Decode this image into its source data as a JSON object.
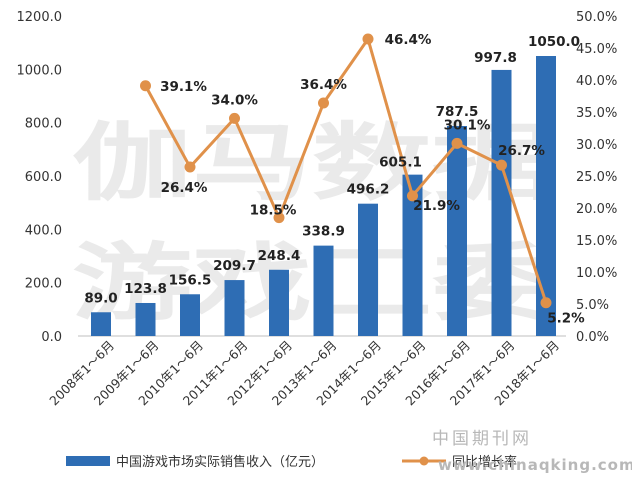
{
  "chart_data": {
    "type": "bar+line",
    "categories": [
      "2008年1～6月",
      "2009年1～6月",
      "2010年1～6月",
      "2011年1～6月",
      "2012年1～6月",
      "2013年1～6月",
      "2014年1～6月",
      "2015年1～6月",
      "2016年1～6月",
      "2017年1～6月",
      "2018年1～6月"
    ],
    "bar_series": {
      "name": "中国游戏市场实际销售收入（亿元）",
      "values": [
        89.0,
        123.8,
        156.5,
        209.7,
        248.4,
        338.9,
        496.2,
        605.1,
        787.5,
        997.8,
        1050.0
      ],
      "labels": [
        "89.0",
        "123.8",
        "156.5",
        "209.7",
        "248.4",
        "338.9",
        "496.2",
        "605.1",
        "787.5",
        "997.8",
        "1050.0"
      ],
      "color": "#2e6db4"
    },
    "line_series": {
      "name": "同比增长率",
      "values": [
        null,
        39.1,
        26.4,
        34.0,
        18.5,
        36.4,
        46.4,
        21.9,
        30.1,
        26.7,
        5.2
      ],
      "labels": [
        "",
        "39.1%",
        "26.4%",
        "34.0%",
        "18.5%",
        "36.4%",
        "46.4%",
        "21.9%",
        "30.1%",
        "26.7%",
        "5.2%"
      ],
      "color": "#e0914a"
    },
    "y_left": {
      "ylim": [
        0,
        1200
      ],
      "ticks": [
        "0.0",
        "200.0",
        "400.0",
        "600.0",
        "800.0",
        "1000.0",
        "1200.0"
      ]
    },
    "y_right": {
      "ylim": [
        0,
        50
      ],
      "ticks": [
        "0.0%",
        "5.0%",
        "10.0%",
        "15.0%",
        "20.0%",
        "25.0%",
        "30.0%",
        "35.0%",
        "40.0%",
        "45.0%",
        "50.0%"
      ]
    },
    "legend_position": "bottom",
    "grid": false
  },
  "watermarks": {
    "brand_line1": "伽马数据",
    "brand_line2": "游戏工委",
    "site_cn": "中国期刊网",
    "site_url": "www.chinaqking.com"
  }
}
